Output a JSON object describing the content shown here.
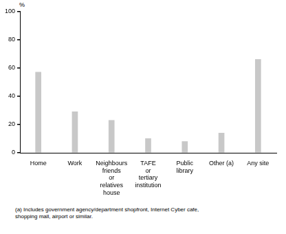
{
  "chart_data": {
    "type": "bar",
    "ylabel": "%",
    "categories": [
      "Home",
      "Work",
      "Neighbours friends or relatives house",
      "TAFE or tertiary institution",
      "Public library",
      "Other (a)",
      "Any site"
    ],
    "values": [
      57,
      29,
      23,
      10,
      8,
      14,
      66
    ],
    "color": "#c8c8c8",
    "ylim": [
      0,
      100
    ],
    "yticks": [
      0,
      20,
      40,
      60,
      80,
      100
    ],
    "grid": true,
    "annotations": [
      "(a) Includes government agency/department shopfront, Internet Cyber cafe, shopping mall, airport or similar."
    ]
  }
}
